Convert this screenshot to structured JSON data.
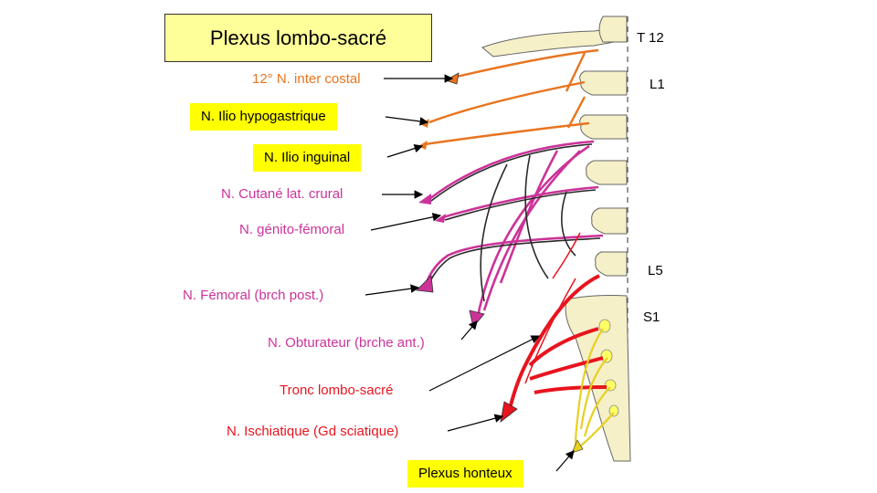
{
  "title": "Plexus lombo-sacré",
  "vertebra_labels": {
    "t12": "T 12",
    "l1": "L1",
    "l5": "L5",
    "s1": "S1"
  },
  "nerves": {
    "intercostal": "12° N. inter costal",
    "ilio_hypogastrique": "N. Ilio hypogastrique",
    "ilio_inguinal": "N. Ilio inguinal",
    "cutane": "N. Cutané lat. crural",
    "genito_femoral": "N. génito-fémoral",
    "femoral": "N. Fémoral (brch post.)",
    "obturateur": "N. Obturateur (brche ant.)",
    "tronc": "Tronc lombo-sacré",
    "ischiatique": "N. Ischiatique (Gd sciatique)",
    "honteux": "Plexus honteux"
  },
  "colors": {
    "orange": "#e8741e",
    "magenta": "#cc3399",
    "red": "#e8141e",
    "yellow": "#ffff00",
    "title_bg": "#ffff99",
    "bone": "#f5f0c8",
    "dark_nerve": "#2a2a2a"
  }
}
